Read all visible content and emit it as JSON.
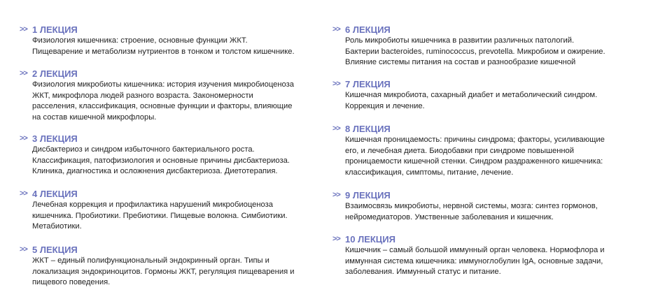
{
  "arrow_glyph": ">>",
  "accent_color": "#6a72bd",
  "lectures": [
    {
      "title": "1 ЛЕКЦИЯ",
      "lines": [
        "Физиология кишечника: строение, основные функции ЖКТ.",
        "Пищеварение и метаболизм нутриентов в тонком и толстом кишечнике."
      ]
    },
    {
      "title": "2 ЛЕКЦИЯ",
      "lines": [
        "Физиология микробиоты кишечника: история изучения микробиоценоза",
        "ЖКТ, микрофлора людей разного возраста. Закономерности",
        "расселения, классификация, основные функции и факторы, влияющие",
        "на состав кишечной микрофлоры."
      ]
    },
    {
      "title": "3 ЛЕКЦИЯ",
      "lines": [
        "Дисбактериоз и синдром избыточного бактериального роста.",
        "Классификация, патофизиология и основные причины дисбактериоза.",
        "Клиника, диагностика и осложнения дисбактериоза. Диетотерапия."
      ]
    },
    {
      "title": "4 ЛЕКЦИЯ",
      "lines": [
        "Лечебная коррекция и профилактика нарушений микробиоценоза",
        "кишечника. Пробиотики. Пребиотики. Пищевые волокна. Симбиотики.",
        "Метабиотики."
      ]
    },
    {
      "title": "5 ЛЕКЦИЯ",
      "lines": [
        "ЖКТ – единый полифункциональный эндокринный орган. Типы и",
        "локализация эндокриноцитов. Гормоны ЖКТ, регуляция пищеварения и",
        "пищевого поведения."
      ]
    },
    {
      "title": "6 ЛЕКЦИЯ",
      "lines": [
        "Роль микробиоты кишечника в развитии различных патологий.",
        "Бактерии bacteroides, ruminococcus, prevotella. Микробиом и ожирение.",
        "Влияние системы питания на состав и разнообразие кишечной"
      ]
    },
    {
      "title": "7 ЛЕКЦИЯ",
      "lines": [
        "Кишечная микробиота, сахарный диабет и метаболический синдром.",
        "Коррекция и лечение."
      ]
    },
    {
      "title": "8 ЛЕКЦИЯ",
      "lines": [
        "Кишечная проницаемость: причины синдрома; факторы, усиливающие",
        "его, и лечебная диета. Биодобавки при синдроме повышенной",
        "проницаемости кишечной стенки. Синдром раздраженного кишечника:",
        "классификация, симптомы, питание, лечение."
      ]
    },
    {
      "title": "9 ЛЕКЦИЯ",
      "lines": [
        "Взаимосвязь микробиоты, нервной системы, мозга: синтез гормонов,",
        "нейромедиаторов. Умственные заболевания и кишечник."
      ]
    },
    {
      "title": "10 ЛЕКЦИЯ",
      "lines": [
        "Кишечник – самый большой иммунный орган человека. Нормофлора и",
        "иммунная система кишечника: иммуноглобулин IgA, основные задачи,",
        "заболевания. Иммунный статус и питание."
      ]
    }
  ]
}
